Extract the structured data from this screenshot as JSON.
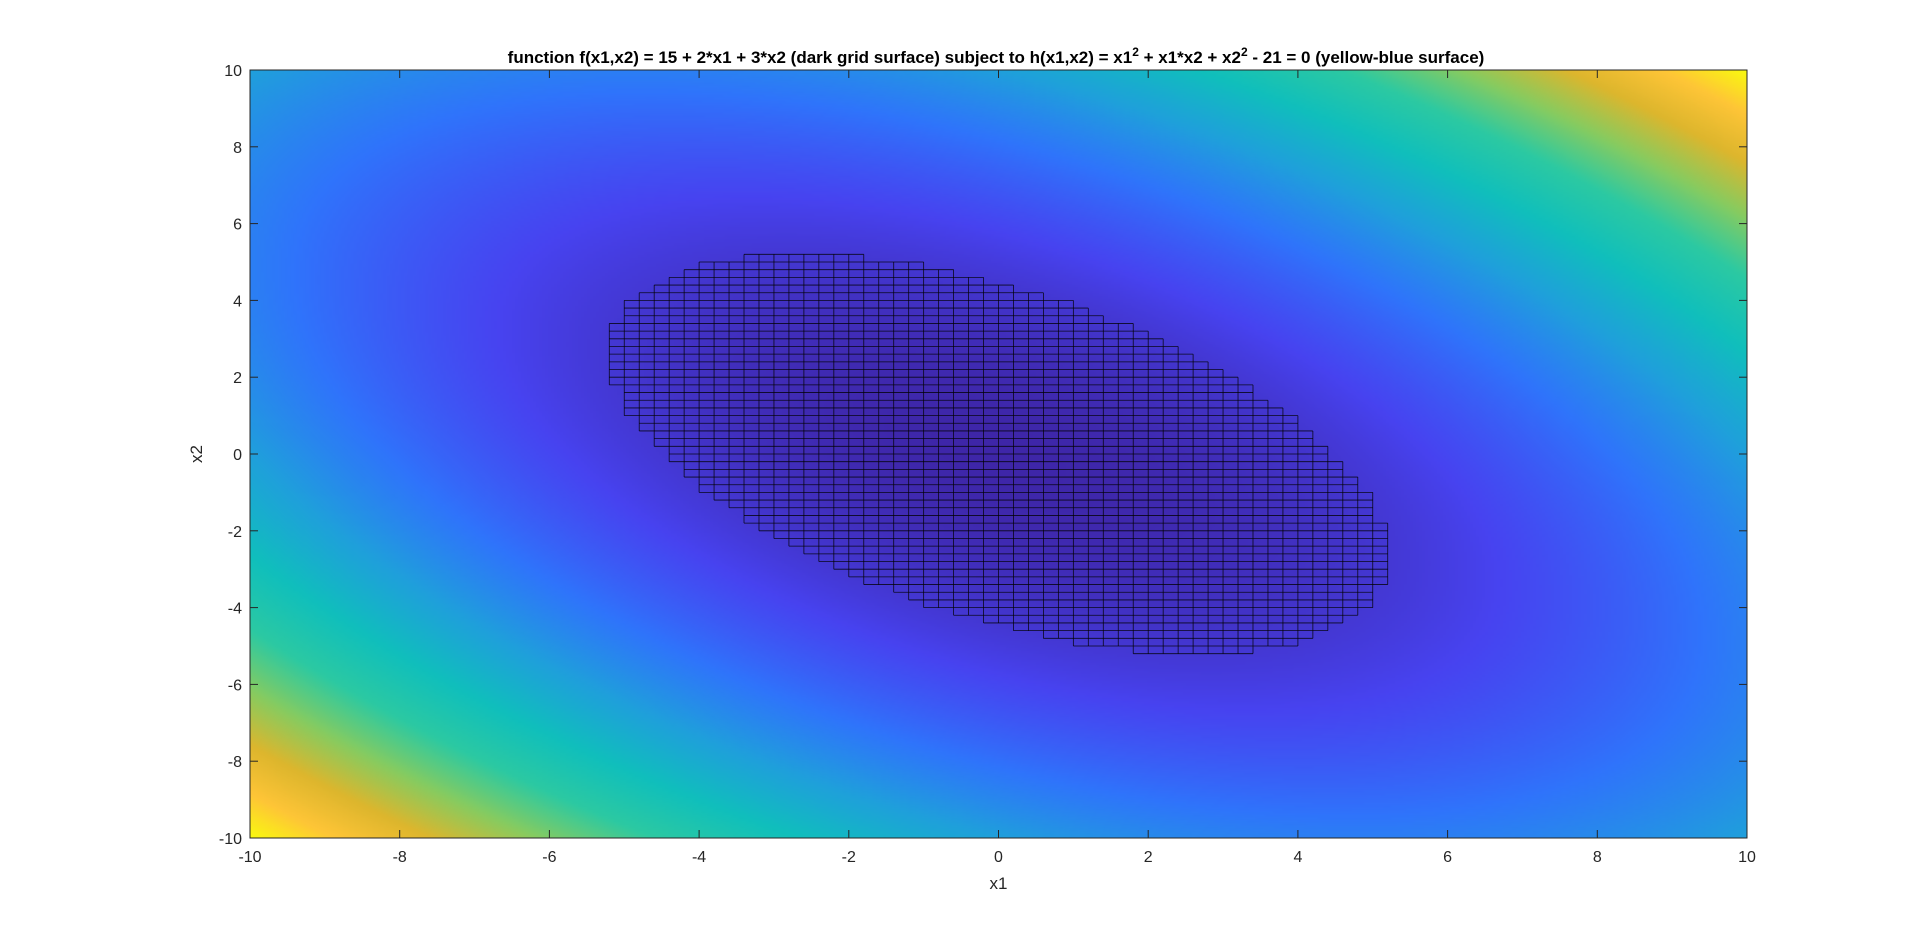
{
  "chart_data": {
    "type": "heatmap",
    "title": {
      "part1": "function f(x1,x2) = 15 + 2*x1 + 3*x2 (dark grid surface) subject to h(x1,x2) = x1",
      "sup1": "2",
      "part2": " + x1*x2 + x2",
      "sup2": "2",
      "part3": " - 21 = 0 (yellow-blue surface)"
    },
    "xlabel": "x1",
    "ylabel": "x2",
    "xlim": [
      -10,
      10
    ],
    "ylim": [
      -10,
      10
    ],
    "xticks": [
      -10,
      -8,
      -6,
      -4,
      -2,
      0,
      2,
      4,
      6,
      8,
      10
    ],
    "yticks": [
      -10,
      -8,
      -6,
      -4,
      -2,
      0,
      2,
      4,
      6,
      8,
      10
    ],
    "grid": false,
    "colormap": "parula",
    "colormap_colors": [
      "#3e26a8",
      "#4743f0",
      "#2f74fb",
      "#1fa0db",
      "#10bfbc",
      "#2cc9a2",
      "#88cb5f",
      "#ddb62d",
      "#fec537",
      "#f9fb0e"
    ],
    "surfaces": [
      {
        "name": "h(x1,x2) = x1^2 + x1*x2 + x2^2 - 21",
        "description_color": "yellow-blue surface",
        "value_range": [
          -21,
          279
        ]
      },
      {
        "name": "f(x1,x2) = 15 + 2*x1 + 3*x2",
        "description_color": "dark grid surface",
        "region": "h(x1,x2) <= 0",
        "grid_step": 0.2,
        "line_color": "#000000"
      }
    ]
  }
}
